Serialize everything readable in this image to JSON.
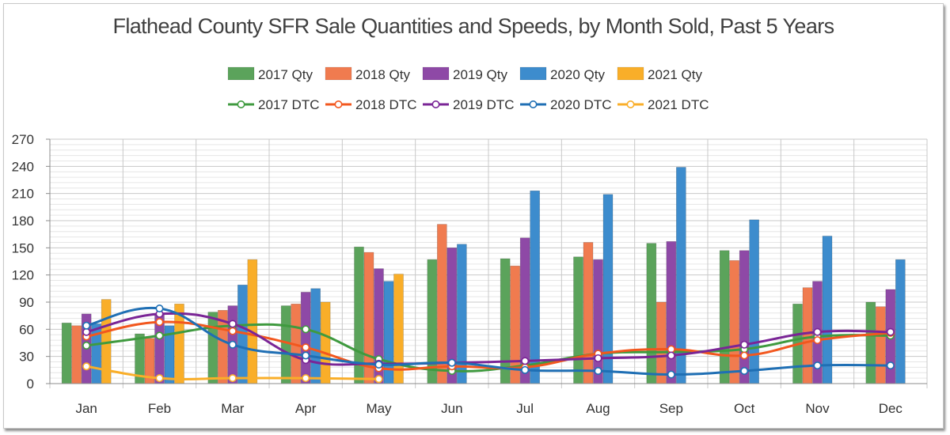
{
  "chart_data": {
    "type": "bar",
    "title": "Flathead County SFR Sale Quantities and Speeds, by Month Sold, Past 5 Years",
    "categories": [
      "Jan",
      "Feb",
      "Mar",
      "Apr",
      "May",
      "Jun",
      "Jul",
      "Aug",
      "Sep",
      "Oct",
      "Nov",
      "Dec"
    ],
    "ylim": [
      0,
      270
    ],
    "yticks": [
      0,
      30,
      60,
      90,
      120,
      150,
      180,
      210,
      240,
      270
    ],
    "grid": true,
    "legend_position": "top",
    "bar_series": [
      {
        "name": "2017 Qty",
        "color": "#5ba35b",
        "values": [
          67,
          55,
          79,
          86,
          151,
          137,
          138,
          140,
          155,
          147,
          88,
          90
        ]
      },
      {
        "name": "2018 Qty",
        "color": "#f07b4f",
        "values": [
          64,
          50,
          81,
          88,
          145,
          176,
          130,
          156,
          90,
          136,
          106,
          85
        ]
      },
      {
        "name": "2019 Qty",
        "color": "#8e49a6",
        "values": [
          77,
          77,
          86,
          101,
          127,
          150,
          161,
          137,
          157,
          147,
          113,
          104
        ]
      },
      {
        "name": "2020 Qty",
        "color": "#3d8ccd",
        "values": [
          66,
          64,
          109,
          105,
          113,
          154,
          213,
          209,
          239,
          181,
          163,
          137
        ]
      },
      {
        "name": "2021 Qty",
        "color": "#f9ae29",
        "values": [
          93,
          88,
          137,
          90,
          121,
          null,
          null,
          null,
          null,
          null,
          null,
          null
        ]
      }
    ],
    "line_series": [
      {
        "name": "2017 DTC",
        "color": "#3f9a3f",
        "values": [
          42,
          53,
          64,
          60,
          27,
          14,
          20,
          33,
          35,
          38,
          52,
          53
        ]
      },
      {
        "name": "2018 DTC",
        "color": "#f2571e",
        "values": [
          52,
          68,
          58,
          40,
          17,
          19,
          18,
          33,
          38,
          31,
          48,
          56
        ]
      },
      {
        "name": "2019 DTC",
        "color": "#7a2596",
        "values": [
          57,
          77,
          66,
          26,
          22,
          23,
          25,
          28,
          31,
          43,
          57,
          57
        ]
      },
      {
        "name": "2020 DTC",
        "color": "#1f6fb4",
        "values": [
          64,
          83,
          43,
          31,
          21,
          23,
          15,
          14,
          10,
          14,
          20,
          20
        ]
      },
      {
        "name": "2021 DTC",
        "color": "#f9ae29",
        "values": [
          19,
          6,
          6,
          6,
          5,
          null,
          null,
          null,
          null,
          null,
          null,
          null
        ]
      }
    ]
  }
}
